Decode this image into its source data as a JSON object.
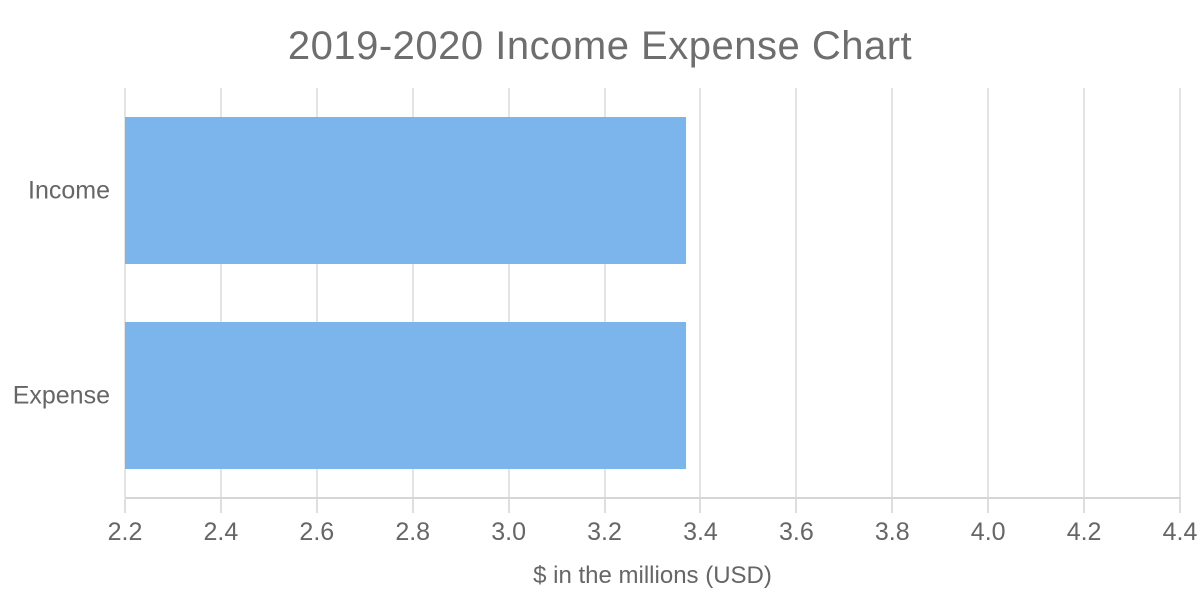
{
  "title": "2019-2020 Income Expense Chart",
  "chart_data": {
    "type": "bar",
    "orientation": "horizontal",
    "title": "2019-2020 Income Expense Chart",
    "xlabel": "$ in the millions (USD)",
    "ylabel": "",
    "categories": [
      "Income",
      "Expense"
    ],
    "values": [
      3.37,
      3.37
    ],
    "xlim": [
      2.2,
      4.4
    ],
    "x_ticks": [
      2.2,
      2.4,
      2.6,
      2.8,
      3.0,
      3.2,
      3.4,
      3.6,
      3.8,
      4.0,
      4.2,
      4.4
    ],
    "x_tick_decimals": 1,
    "grid": true,
    "legend": false,
    "colors": {
      "bar": "#7cb5ec",
      "gridline": "#e4e4e4",
      "axis_line": "#d6d6d6",
      "tick_mark": "#dedede",
      "label_text": "#666666",
      "title_text": "#6e6e6e"
    }
  }
}
